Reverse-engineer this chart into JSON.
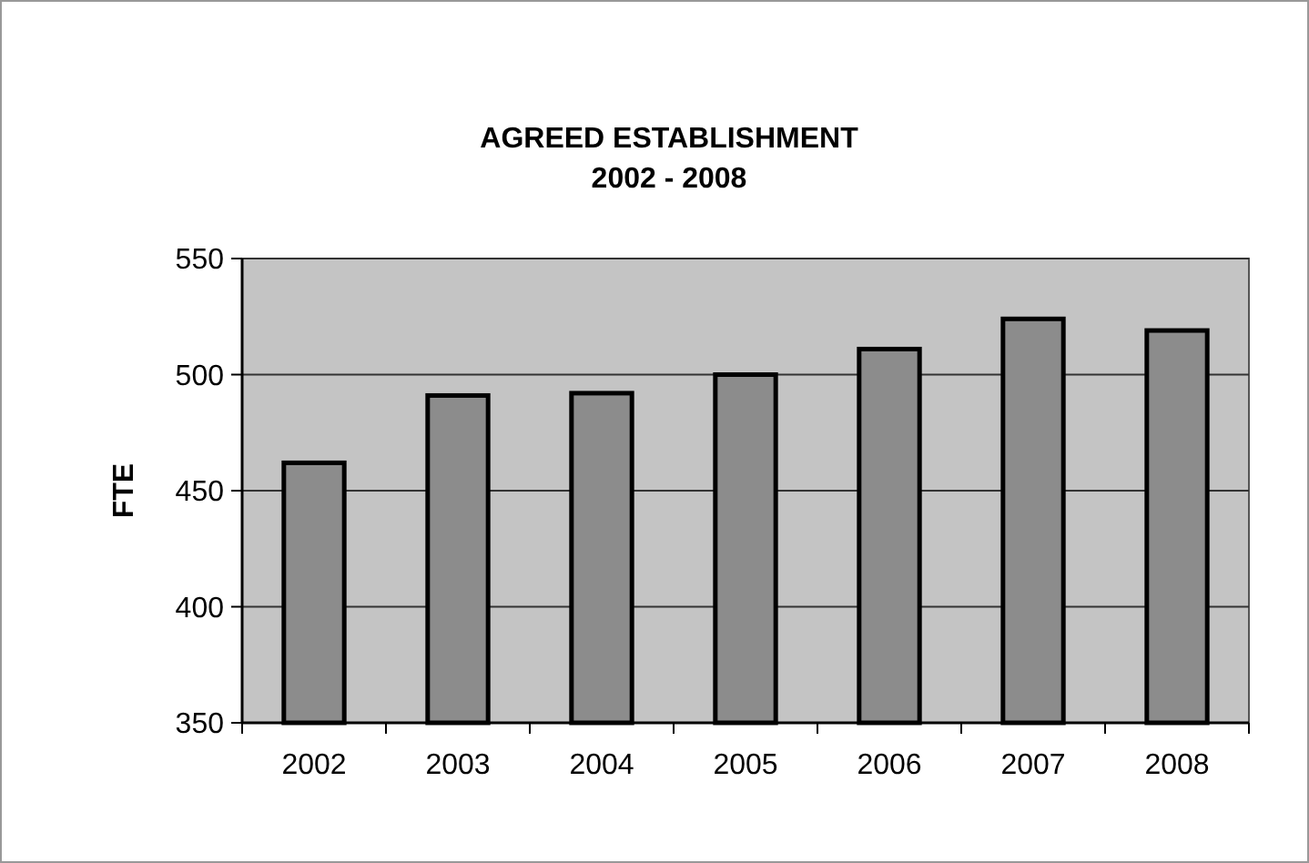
{
  "chart_data": {
    "type": "bar",
    "title": "AGREED ESTABLISHMENT\n2002 - 2008",
    "ylabel": "FTE",
    "categories": [
      "2002",
      "2003",
      "2004",
      "2005",
      "2006",
      "2007",
      "2008"
    ],
    "values": [
      462,
      491,
      492,
      500,
      511,
      524,
      519
    ],
    "color": "#8c8c8c",
    "ylim": [
      350,
      550
    ],
    "yticks": [
      350,
      400,
      450,
      500,
      550
    ],
    "grid": "y"
  }
}
